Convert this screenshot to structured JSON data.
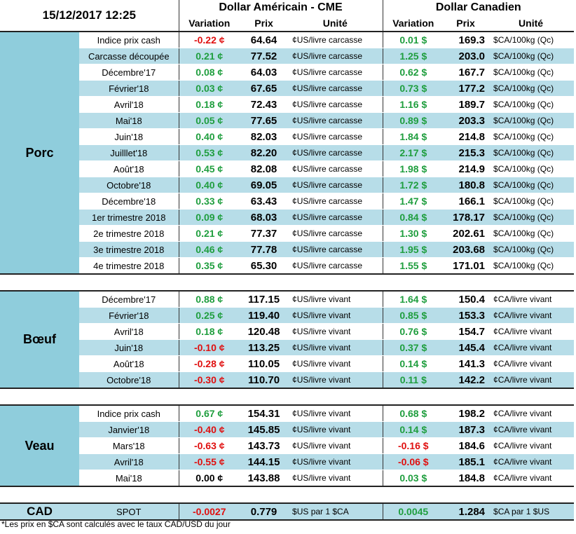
{
  "header": {
    "timestamp": "15/12/2017 12:25",
    "usd_group": "Dollar Américain - CME",
    "cad_group": "Dollar Canadien",
    "col_variation": "Variation",
    "col_prix": "Prix",
    "col_unite": "Unité"
  },
  "sections": [
    {
      "category": "Porc",
      "rows": [
        {
          "label": "Indice prix cash",
          "usd_var": "-0.22 ¢",
          "usd_prix": "64.64",
          "usd_unit": "¢US/livre carcasse",
          "cad_var": "0.01 $",
          "cad_prix": "169.3",
          "cad_unit": "$CA/100kg (Qc)"
        },
        {
          "label": "Carcasse découpée",
          "usd_var": "0.21 ¢",
          "usd_prix": "77.52",
          "usd_unit": "¢US/livre carcasse",
          "cad_var": "1.25 $",
          "cad_prix": "203.0",
          "cad_unit": "$CA/100kg (Qc)"
        },
        {
          "label": "Décembre'17",
          "usd_var": "0.08 ¢",
          "usd_prix": "64.03",
          "usd_unit": "¢US/livre carcasse",
          "cad_var": "0.62 $",
          "cad_prix": "167.7",
          "cad_unit": "$CA/100kg (Qc)"
        },
        {
          "label": "Février'18",
          "usd_var": "0.03 ¢",
          "usd_prix": "67.65",
          "usd_unit": "¢US/livre carcasse",
          "cad_var": "0.73 $",
          "cad_prix": "177.2",
          "cad_unit": "$CA/100kg (Qc)"
        },
        {
          "label": "Avril'18",
          "usd_var": "0.18 ¢",
          "usd_prix": "72.43",
          "usd_unit": "¢US/livre carcasse",
          "cad_var": "1.16 $",
          "cad_prix": "189.7",
          "cad_unit": "$CA/100kg (Qc)"
        },
        {
          "label": "Mai'18",
          "usd_var": "0.05 ¢",
          "usd_prix": "77.65",
          "usd_unit": "¢US/livre carcasse",
          "cad_var": "0.89 $",
          "cad_prix": "203.3",
          "cad_unit": "$CA/100kg (Qc)"
        },
        {
          "label": "Juin'18",
          "usd_var": "0.40 ¢",
          "usd_prix": "82.03",
          "usd_unit": "¢US/livre carcasse",
          "cad_var": "1.84 $",
          "cad_prix": "214.8",
          "cad_unit": "$CA/100kg (Qc)"
        },
        {
          "label": "Juilllet'18",
          "usd_var": "0.53 ¢",
          "usd_prix": "82.20",
          "usd_unit": "¢US/livre carcasse",
          "cad_var": "2.17 $",
          "cad_prix": "215.3",
          "cad_unit": "$CA/100kg (Qc)"
        },
        {
          "label": "Août'18",
          "usd_var": "0.45 ¢",
          "usd_prix": "82.08",
          "usd_unit": "¢US/livre carcasse",
          "cad_var": "1.98 $",
          "cad_prix": "214.9",
          "cad_unit": "$CA/100kg (Qc)"
        },
        {
          "label": "Octobre'18",
          "usd_var": "0.40 ¢",
          "usd_prix": "69.05",
          "usd_unit": "¢US/livre carcasse",
          "cad_var": "1.72 $",
          "cad_prix": "180.8",
          "cad_unit": "$CA/100kg (Qc)"
        },
        {
          "label": "Décembre'18",
          "usd_var": "0.33 ¢",
          "usd_prix": "63.43",
          "usd_unit": "¢US/livre carcasse",
          "cad_var": "1.47 $",
          "cad_prix": "166.1",
          "cad_unit": "$CA/100kg (Qc)"
        },
        {
          "label": "1er trimestre 2018",
          "usd_var": "0.09 ¢",
          "usd_prix": "68.03",
          "usd_unit": "¢US/livre carcasse",
          "cad_var": "0.84 $",
          "cad_prix": "178.17",
          "cad_unit": "$CA/100kg (Qc)"
        },
        {
          "label": "2e trimestre 2018",
          "usd_var": "0.21 ¢",
          "usd_prix": "77.37",
          "usd_unit": "¢US/livre carcasse",
          "cad_var": "1.30 $",
          "cad_prix": "202.61",
          "cad_unit": "$CA/100kg (Qc)"
        },
        {
          "label": "3e trimestre 2018",
          "usd_var": "0.46 ¢",
          "usd_prix": "77.78",
          "usd_unit": "¢US/livre carcasse",
          "cad_var": "1.95 $",
          "cad_prix": "203.68",
          "cad_unit": "$CA/100kg (Qc)"
        },
        {
          "label": "4e trimestre 2018",
          "usd_var": "0.35 ¢",
          "usd_prix": "65.30",
          "usd_unit": "¢US/livre carcasse",
          "cad_var": "1.55 $",
          "cad_prix": "171.01",
          "cad_unit": "$CA/100kg (Qc)"
        }
      ]
    },
    {
      "category": "Bœuf",
      "rows": [
        {
          "label": "Décembre'17",
          "usd_var": "0.88 ¢",
          "usd_prix": "117.15",
          "usd_unit": "¢US/livre vivant",
          "cad_var": "1.64 $",
          "cad_prix": "150.4",
          "cad_unit": "¢CA/livre vivant"
        },
        {
          "label": "Février'18",
          "usd_var": "0.25 ¢",
          "usd_prix": "119.40",
          "usd_unit": "¢US/livre vivant",
          "cad_var": "0.85 $",
          "cad_prix": "153.3",
          "cad_unit": "¢CA/livre vivant"
        },
        {
          "label": "Avril'18",
          "usd_var": "0.18 ¢",
          "usd_prix": "120.48",
          "usd_unit": "¢US/livre vivant",
          "cad_var": "0.76 $",
          "cad_prix": "154.7",
          "cad_unit": "¢CA/livre vivant"
        },
        {
          "label": "Juin'18",
          "usd_var": "-0.10 ¢",
          "usd_prix": "113.25",
          "usd_unit": "¢US/livre vivant",
          "cad_var": "0.37 $",
          "cad_prix": "145.4",
          "cad_unit": "¢CA/livre vivant"
        },
        {
          "label": "Août'18",
          "usd_var": "-0.28 ¢",
          "usd_prix": "110.05",
          "usd_unit": "¢US/livre vivant",
          "cad_var": "0.14 $",
          "cad_prix": "141.3",
          "cad_unit": "¢CA/livre vivant"
        },
        {
          "label": "Octobre'18",
          "usd_var": "-0.30 ¢",
          "usd_prix": "110.70",
          "usd_unit": "¢US/livre vivant",
          "cad_var": "0.11 $",
          "cad_prix": "142.2",
          "cad_unit": "¢CA/livre vivant"
        }
      ]
    },
    {
      "category": "Veau",
      "rows": [
        {
          "label": "Indice prix cash",
          "usd_var": "0.67 ¢",
          "usd_prix": "154.31",
          "usd_unit": "¢US/livre vivant",
          "cad_var": "0.68 $",
          "cad_prix": "198.2",
          "cad_unit": "¢CA/livre vivant"
        },
        {
          "label": "Janvier'18",
          "usd_var": "-0.40 ¢",
          "usd_prix": "145.85",
          "usd_unit": "¢US/livre vivant",
          "cad_var": "0.14 $",
          "cad_prix": "187.3",
          "cad_unit": "¢CA/livre vivant"
        },
        {
          "label": "Mars'18",
          "usd_var": "-0.63 ¢",
          "usd_prix": "143.73",
          "usd_unit": "¢US/livre vivant",
          "cad_var": "-0.16 $",
          "cad_prix": "184.6",
          "cad_unit": "¢CA/livre vivant"
        },
        {
          "label": "Avril'18",
          "usd_var": "-0.55 ¢",
          "usd_prix": "144.15",
          "usd_unit": "¢US/livre vivant",
          "cad_var": "-0.06 $",
          "cad_prix": "185.1",
          "cad_unit": "¢CA/livre vivant"
        },
        {
          "label": "Mai'18",
          "usd_var": "0.00 ¢",
          "usd_prix": "143.88",
          "usd_unit": "¢US/livre vivant",
          "cad_var": "0.03 $",
          "cad_prix": "184.8",
          "cad_unit": "¢CA/livre vivant"
        }
      ]
    }
  ],
  "cad_row": {
    "label": "CAD",
    "sub": "SPOT",
    "usd_var": "-0.0027",
    "usd_prix": "0.779",
    "usd_unit": "$US par 1 $CA",
    "cad_var": "0.0045",
    "cad_prix": "1.284",
    "cad_unit": "$CA par 1 $US"
  },
  "footnote": "*Les  prix en $CA sont calculés avec le taux CAD/USD du jour",
  "colors": {
    "category_bg": "#8fcddc",
    "row_alt_bg": "#b7dde8",
    "positive": "#1f9e3e",
    "negative": "#e01010"
  }
}
